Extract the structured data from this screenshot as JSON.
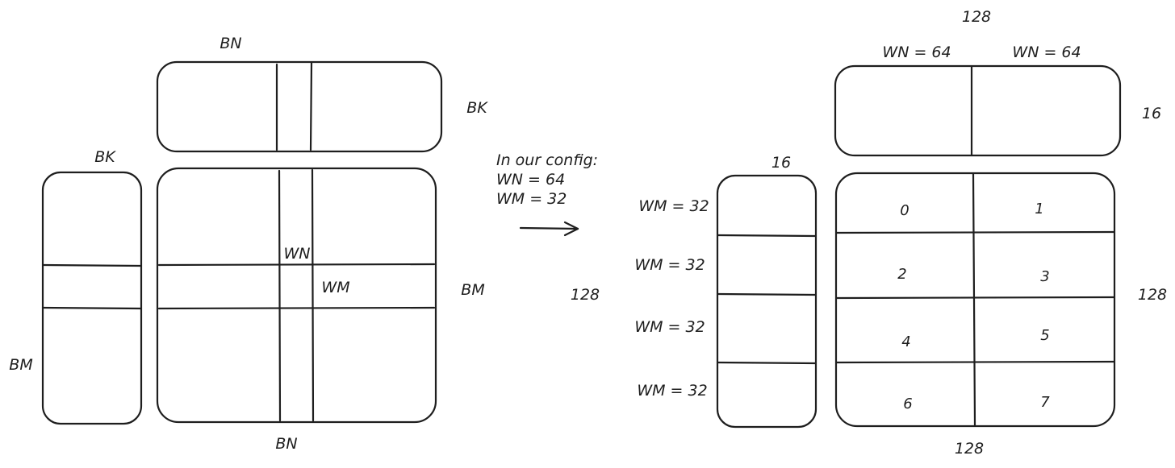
{
  "left": {
    "b_top_label": "BN",
    "b_top_right_label": "BK",
    "a_top_label": "BK",
    "a_left_label": "BM",
    "c_wn_label": "WN",
    "c_wm_label": "WM",
    "c_right_label": "BM",
    "c_bottom_label": "BN"
  },
  "config": {
    "title": "In our config:",
    "wn": "WN = 64",
    "wm": "WM = 32"
  },
  "right": {
    "b_top_total": "128",
    "b_col_labels": [
      "WN = 64",
      "WN = 64"
    ],
    "b_right_label": "16",
    "a_top_label": "16",
    "a_row_labels": [
      "WM = 32",
      "WM = 32",
      "WM = 32",
      "WM = 32"
    ],
    "a_left_total": "128",
    "c_right_total": "128",
    "c_bottom_total": "128",
    "warp_ids": [
      "0",
      "1",
      "2",
      "3",
      "4",
      "5",
      "6",
      "7"
    ]
  }
}
